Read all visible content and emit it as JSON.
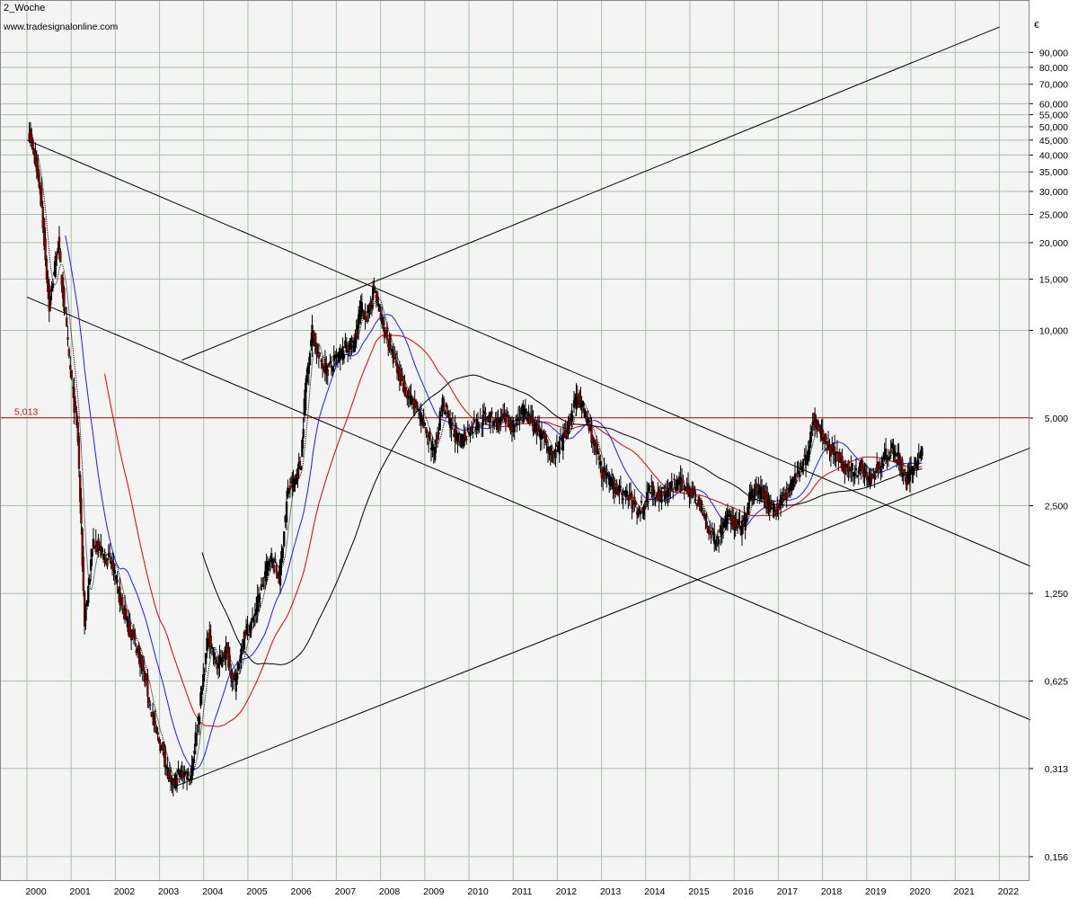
{
  "header": {
    "title": "2_Woche",
    "source": "www.tradesignalonline.com",
    "currency": "€"
  },
  "chart_data": {
    "type": "candlestick",
    "title": "2_Woche",
    "scale": "log",
    "ylim": [
      0.14,
      120
    ],
    "xlim": [
      1999.8,
      2022.5
    ],
    "x_ticks": [
      "2000",
      "2001",
      "2002",
      "2003",
      "2004",
      "2005",
      "2006",
      "2007",
      "2008",
      "2009",
      "2010",
      "2011",
      "2012",
      "2013",
      "2014",
      "2015",
      "2016",
      "2017",
      "2018",
      "2019",
      "2020",
      "2021",
      "2022"
    ],
    "y_ticks": [
      "0,156",
      "0,313",
      "0,625",
      "1,250",
      "2,500",
      "5,000",
      "10,000",
      "15,000",
      "20,000",
      "25,000",
      "30,000",
      "35,000",
      "40,000",
      "45,000",
      "50,000",
      "55,000",
      "60,000",
      "70,000",
      "80,000",
      "90,000"
    ],
    "reference_line": {
      "value": 5.013,
      "label": "5,013",
      "color": "#d01010"
    },
    "colors": {
      "up": "#000000",
      "down": "#8b0000",
      "ma_fast": "#000000",
      "ma_mid": "#1a1aff",
      "ma_slow": "#e00000",
      "ma_long": "#000000",
      "grid": "#a8c0a8",
      "background": "#f4f4f4"
    },
    "price_path": [
      [
        1999.85,
        48
      ],
      [
        2000.1,
        30
      ],
      [
        2000.3,
        12
      ],
      [
        2000.5,
        20
      ],
      [
        2000.75,
        8
      ],
      [
        2000.95,
        4.2
      ],
      [
        2001.1,
        1.0
      ],
      [
        2001.3,
        1.9
      ],
      [
        2001.5,
        1.7
      ],
      [
        2001.7,
        1.6
      ],
      [
        2001.9,
        1.2
      ],
      [
        2002.1,
        0.95
      ],
      [
        2002.3,
        0.8
      ],
      [
        2002.5,
        0.6
      ],
      [
        2002.7,
        0.42
      ],
      [
        2002.9,
        0.35
      ],
      [
        2003.05,
        0.27
      ],
      [
        2003.25,
        0.3
      ],
      [
        2003.5,
        0.3
      ],
      [
        2003.7,
        0.5
      ],
      [
        2003.9,
        0.9
      ],
      [
        2004.1,
        0.7
      ],
      [
        2004.3,
        0.8
      ],
      [
        2004.5,
        0.6
      ],
      [
        2004.7,
        0.9
      ],
      [
        2004.9,
        1.0
      ],
      [
        2005.1,
        1.3
      ],
      [
        2005.3,
        1.7
      ],
      [
        2005.5,
        1.4
      ],
      [
        2005.7,
        2.8
      ],
      [
        2005.85,
        3.0
      ],
      [
        2006.0,
        3.6
      ],
      [
        2006.1,
        6.5
      ],
      [
        2006.25,
        10.0
      ],
      [
        2006.4,
        8.0
      ],
      [
        2006.6,
        7.3
      ],
      [
        2006.8,
        8.0
      ],
      [
        2007.0,
        8.7
      ],
      [
        2007.2,
        9.0
      ],
      [
        2007.35,
        12.0
      ],
      [
        2007.5,
        11.0
      ],
      [
        2007.65,
        14.0
      ],
      [
        2007.8,
        11.0
      ],
      [
        2008.0,
        8.8
      ],
      [
        2008.2,
        7.0
      ],
      [
        2008.4,
        6.0
      ],
      [
        2008.6,
        5.4
      ],
      [
        2008.8,
        4.6
      ],
      [
        2009.0,
        3.8
      ],
      [
        2009.2,
        5.6
      ],
      [
        2009.4,
        4.6
      ],
      [
        2009.6,
        4.1
      ],
      [
        2009.8,
        4.6
      ],
      [
        2010.0,
        4.8
      ],
      [
        2010.2,
        5.1
      ],
      [
        2010.4,
        4.8
      ],
      [
        2010.6,
        4.9
      ],
      [
        2010.8,
        4.7
      ],
      [
        2011.0,
        5.3
      ],
      [
        2011.15,
        5.0
      ],
      [
        2011.3,
        4.6
      ],
      [
        2011.5,
        4.2
      ],
      [
        2011.7,
        3.7
      ],
      [
        2011.9,
        4.1
      ],
      [
        2012.1,
        5.0
      ],
      [
        2012.25,
        6.0
      ],
      [
        2012.4,
        5.3
      ],
      [
        2012.6,
        4.2
      ],
      [
        2012.8,
        3.3
      ],
      [
        2013.0,
        3.0
      ],
      [
        2013.2,
        2.8
      ],
      [
        2013.4,
        2.7
      ],
      [
        2013.6,
        2.4
      ],
      [
        2013.75,
        2.5
      ],
      [
        2013.9,
        2.9
      ],
      [
        2014.1,
        2.7
      ],
      [
        2014.3,
        2.8
      ],
      [
        2014.5,
        3.0
      ],
      [
        2014.7,
        2.9
      ],
      [
        2014.9,
        2.75
      ],
      [
        2015.1,
        2.3
      ],
      [
        2015.25,
        2.0
      ],
      [
        2015.4,
        1.9
      ],
      [
        2015.55,
        2.2
      ],
      [
        2015.7,
        2.3
      ],
      [
        2015.85,
        2.1
      ],
      [
        2016.0,
        2.1
      ],
      [
        2016.15,
        2.6
      ],
      [
        2016.3,
        2.9
      ],
      [
        2016.45,
        2.7
      ],
      [
        2016.6,
        2.5
      ],
      [
        2016.75,
        2.4
      ],
      [
        2016.9,
        2.7
      ],
      [
        2017.1,
        2.9
      ],
      [
        2017.25,
        3.3
      ],
      [
        2017.45,
        3.8
      ],
      [
        2017.6,
        5.0
      ],
      [
        2017.75,
        4.4
      ],
      [
        2017.9,
        4.0
      ],
      [
        2018.1,
        3.7
      ],
      [
        2018.3,
        3.4
      ],
      [
        2018.5,
        3.3
      ],
      [
        2018.7,
        3.4
      ],
      [
        2018.85,
        3.0
      ],
      [
        2019.0,
        3.3
      ],
      [
        2019.2,
        3.7
      ],
      [
        2019.4,
        3.9
      ],
      [
        2019.55,
        3.5
      ],
      [
        2019.7,
        3.0
      ],
      [
        2019.85,
        3.4
      ],
      [
        2020.0,
        3.6
      ],
      [
        2020.05,
        4.2
      ]
    ],
    "trend_lines": [
      {
        "name": "upper-channel",
        "from": [
          2003.3,
          7.9
        ],
        "to": [
          2021.8,
          110
        ]
      },
      {
        "name": "descending-upper",
        "from": [
          1999.8,
          45
        ],
        "to": [
          2022.5,
          1.55
        ]
      },
      {
        "name": "descending-lower",
        "from": [
          1999.8,
          13
        ],
        "to": [
          2022.5,
          0.46
        ]
      },
      {
        "name": "ascending-support",
        "from": [
          2003.1,
          0.27
        ],
        "to": [
          2022.5,
          3.95
        ]
      }
    ]
  }
}
